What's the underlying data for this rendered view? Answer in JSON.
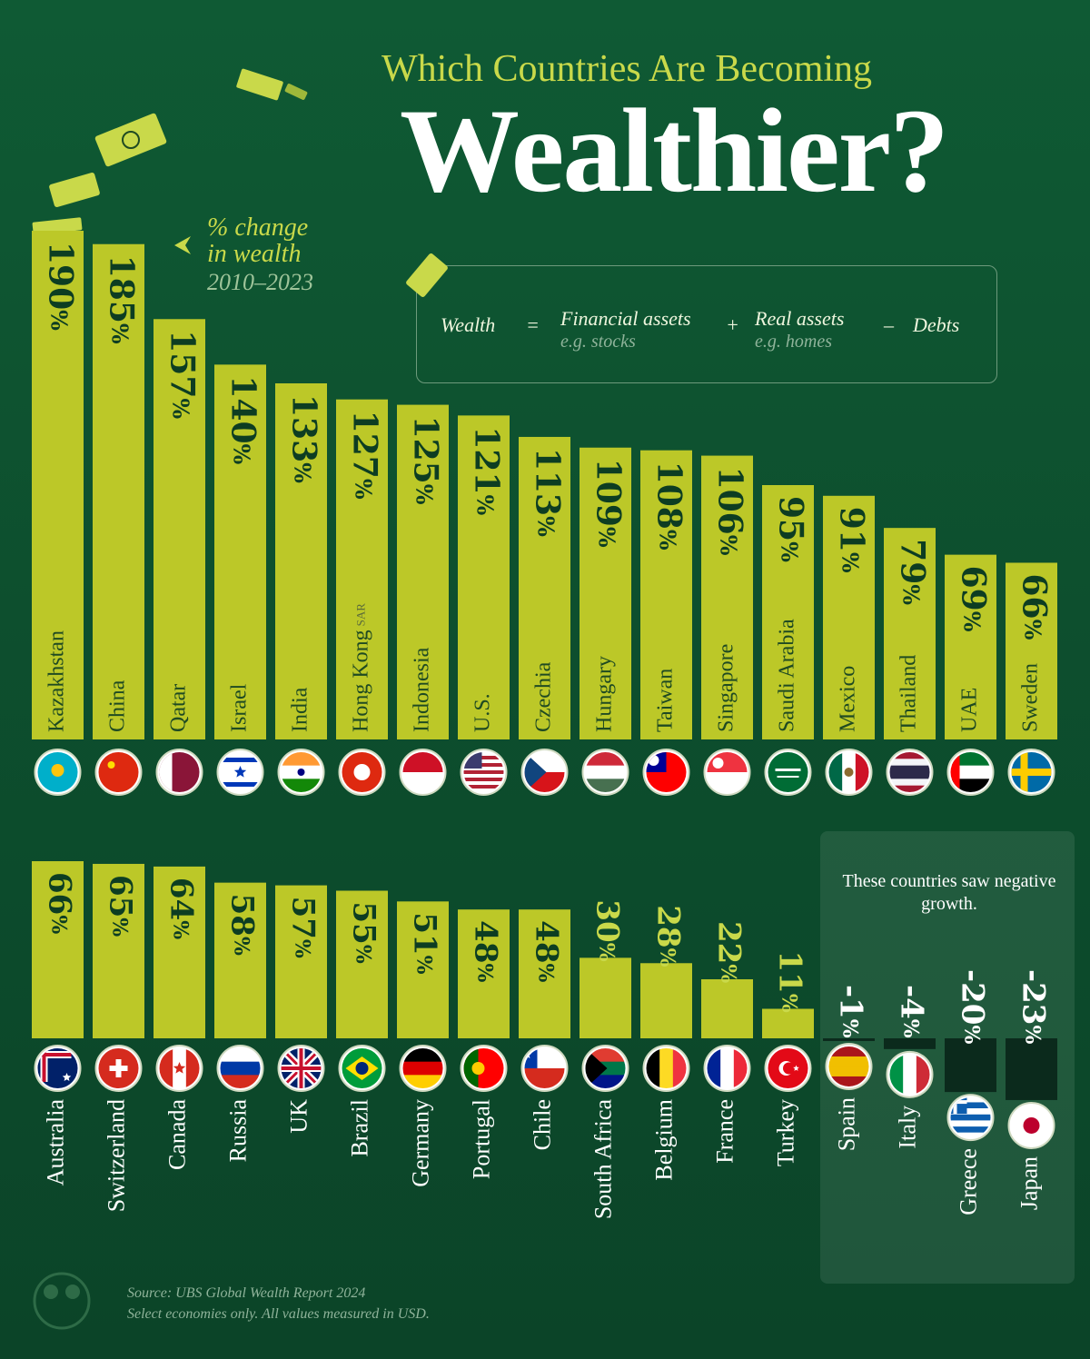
{
  "header": {
    "subtitle": "Which Countries Are Becoming",
    "title": "Wealthier?"
  },
  "annotation": {
    "line1": "% change",
    "line2": "in wealth",
    "years": "2010–2023"
  },
  "formula": {
    "wealth": "Wealth",
    "equals": "=",
    "financial": "Financial assets",
    "financial_example": "e.g. stocks",
    "plus": "+",
    "real": "Real assets",
    "real_example": "e.g. homes",
    "minus": "–",
    "debts": "Debts"
  },
  "negative_note": "These countries saw negative growth.",
  "source": {
    "line1": "Source: UBS Global Wealth Report 2024",
    "line2": "Select economies only. All values measured in USD."
  },
  "colors": {
    "background": "#0d4f2e",
    "bar": "#bcc828",
    "negative_bar": "#0b2a1c",
    "accent": "#c9d94a"
  },
  "chart_data": {
    "type": "bar",
    "unit": "%",
    "ylabel": "% change in wealth 2010–2023",
    "rows": [
      {
        "countries": [
          {
            "name": "Kazakhstan",
            "value": 190,
            "label": "190%",
            "flag": "kazakhstan-flag"
          },
          {
            "name": "China",
            "value": 185,
            "label": "185%",
            "flag": "china-flag"
          },
          {
            "name": "Qatar",
            "value": 157,
            "label": "157%",
            "flag": "qatar-flag"
          },
          {
            "name": "Israel",
            "value": 140,
            "label": "140%",
            "flag": "israel-flag"
          },
          {
            "name": "India",
            "value": 133,
            "label": "133%",
            "flag": "india-flag"
          },
          {
            "name": "Hong Kong",
            "suffix": "SAR",
            "value": 127,
            "label": "127%",
            "flag": "hong-kong-flag"
          },
          {
            "name": "Indonesia",
            "value": 125,
            "label": "125%",
            "flag": "indonesia-flag"
          },
          {
            "name": "U.S.",
            "value": 121,
            "label": "121%",
            "flag": "usa-flag"
          },
          {
            "name": "Czechia",
            "value": 113,
            "label": "113%",
            "flag": "czechia-flag"
          },
          {
            "name": "Hungary",
            "value": 109,
            "label": "109%",
            "flag": "hungary-flag"
          },
          {
            "name": "Taiwan",
            "value": 108,
            "label": "108%",
            "flag": "taiwan-flag"
          },
          {
            "name": "Singapore",
            "value": 106,
            "label": "106%",
            "flag": "singapore-flag"
          },
          {
            "name": "Saudi Arabia",
            "value": 95,
            "label": "95%",
            "flag": "saudi-arabia-flag"
          },
          {
            "name": "Mexico",
            "value": 91,
            "label": "91%",
            "flag": "mexico-flag"
          },
          {
            "name": "Thailand",
            "value": 79,
            "label": "79%",
            "flag": "thailand-flag"
          },
          {
            "name": "UAE",
            "value": 69,
            "label": "69%",
            "flag": "uae-flag"
          },
          {
            "name": "Sweden",
            "value": 66,
            "label": "66%",
            "flag": "sweden-flag"
          }
        ]
      },
      {
        "countries": [
          {
            "name": "Australia",
            "value": 66,
            "label": "66%",
            "flag": "australia-flag"
          },
          {
            "name": "Switzerland",
            "value": 65,
            "label": "65%",
            "flag": "switzerland-flag"
          },
          {
            "name": "Canada",
            "value": 64,
            "label": "64%",
            "flag": "canada-flag"
          },
          {
            "name": "Russia",
            "value": 58,
            "label": "58%",
            "flag": "russia-flag"
          },
          {
            "name": "UK",
            "value": 57,
            "label": "57%",
            "flag": "uk-flag"
          },
          {
            "name": "Brazil",
            "value": 55,
            "label": "55%",
            "flag": "brazil-flag"
          },
          {
            "name": "Germany",
            "value": 51,
            "label": "51%",
            "flag": "germany-flag"
          },
          {
            "name": "Portugal",
            "value": 48,
            "label": "48%",
            "flag": "portugal-flag"
          },
          {
            "name": "Chile",
            "value": 48,
            "label": "48%",
            "flag": "chile-flag"
          },
          {
            "name": "South Africa",
            "value": 30,
            "label": "30%",
            "flag": "south-africa-flag"
          },
          {
            "name": "Belgium",
            "value": 28,
            "label": "28%",
            "flag": "belgium-flag"
          },
          {
            "name": "France",
            "value": 22,
            "label": "22%",
            "flag": "france-flag"
          },
          {
            "name": "Turkey",
            "value": 11,
            "label": "11%",
            "flag": "turkey-flag"
          },
          {
            "name": "Spain",
            "value": -1,
            "label": "-1%",
            "flag": "spain-flag"
          },
          {
            "name": "Italy",
            "value": -4,
            "label": "-4%",
            "flag": "italy-flag"
          },
          {
            "name": "Greece",
            "value": -20,
            "label": "-20%",
            "flag": "greece-flag"
          },
          {
            "name": "Japan",
            "value": -23,
            "label": "-23%",
            "flag": "japan-flag"
          }
        ]
      }
    ]
  }
}
